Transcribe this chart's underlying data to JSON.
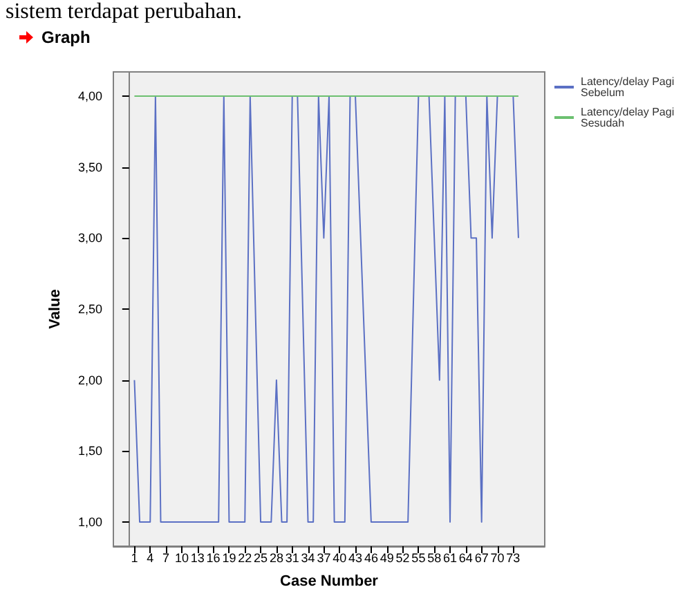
{
  "chart_data": {
    "type": "line",
    "title": "Graph",
    "xlabel": "Case Number",
    "ylabel": "Value",
    "annotations": [
      "sistem terdapat perubahan."
    ],
    "x": [
      1,
      2,
      3,
      4,
      5,
      6,
      7,
      8,
      9,
      10,
      11,
      12,
      13,
      14,
      15,
      16,
      17,
      18,
      19,
      20,
      21,
      22,
      23,
      24,
      25,
      26,
      27,
      28,
      29,
      30,
      31,
      32,
      33,
      34,
      35,
      36,
      37,
      38,
      39,
      40,
      41,
      42,
      43,
      44,
      45,
      46,
      47,
      48,
      49,
      50,
      51,
      52,
      53,
      54,
      55,
      56,
      57,
      58,
      59,
      60,
      61,
      62,
      63,
      64,
      65,
      66,
      67,
      68,
      69,
      70,
      71,
      72,
      73,
      74
    ],
    "series": [
      {
        "name": "Latency/delay Pagi Sebelum",
        "color": "#5b70c4",
        "values": [
          2,
          1,
          1,
          1,
          4,
          1,
          1,
          1,
          1,
          1,
          1,
          1,
          1,
          1,
          1,
          1,
          1,
          4,
          1,
          1,
          1,
          1,
          4,
          2.5,
          1,
          1,
          1,
          2,
          1,
          1,
          4,
          4,
          2.5,
          1,
          1,
          4,
          3,
          4,
          1,
          1,
          1,
          4,
          4,
          3,
          2,
          1,
          1,
          1,
          1,
          1,
          1,
          1,
          1,
          2.5,
          4,
          4,
          4,
          3,
          2,
          4,
          1,
          4,
          4,
          4,
          3,
          3,
          1,
          4,
          3,
          4,
          4,
          4,
          4,
          3
        ]
      },
      {
        "name": "Latency/delay Pagi Sesudah",
        "color": "#6cc070",
        "values": [
          4,
          4,
          4,
          4,
          4,
          4,
          4,
          4,
          4,
          4,
          4,
          4,
          4,
          4,
          4,
          4,
          4,
          4,
          4,
          4,
          4,
          4,
          4,
          4,
          4,
          4,
          4,
          4,
          4,
          4,
          4,
          4,
          4,
          4,
          4,
          4,
          4,
          4,
          4,
          4,
          4,
          4,
          4,
          4,
          4,
          4,
          4,
          4,
          4,
          4,
          4,
          4,
          4,
          4,
          4,
          4,
          4,
          4,
          4,
          4,
          4,
          4,
          4,
          4,
          4,
          4,
          4,
          4,
          4,
          4,
          4,
          4,
          4,
          4
        ]
      }
    ],
    "xlim": [
      -3,
      79
    ],
    "xticks": [
      1,
      4,
      7,
      10,
      13,
      16,
      19,
      22,
      25,
      28,
      31,
      34,
      37,
      40,
      43,
      46,
      49,
      52,
      55,
      58,
      61,
      64,
      67,
      70,
      73
    ],
    "ylim": [
      0.83,
      4.17
    ],
    "yticks": [
      {
        "value": 1,
        "label": "1,00"
      },
      {
        "value": 1.5,
        "label": "1,50"
      },
      {
        "value": 2,
        "label": "2,00"
      },
      {
        "value": 2.5,
        "label": "2,50"
      },
      {
        "value": 3,
        "label": "3,00"
      },
      {
        "value": 3.5,
        "label": "3,50"
      },
      {
        "value": 4,
        "label": "4,00"
      }
    ],
    "grid": false,
    "legend": "top right",
    "marker": "none",
    "line_style": "solid"
  }
}
